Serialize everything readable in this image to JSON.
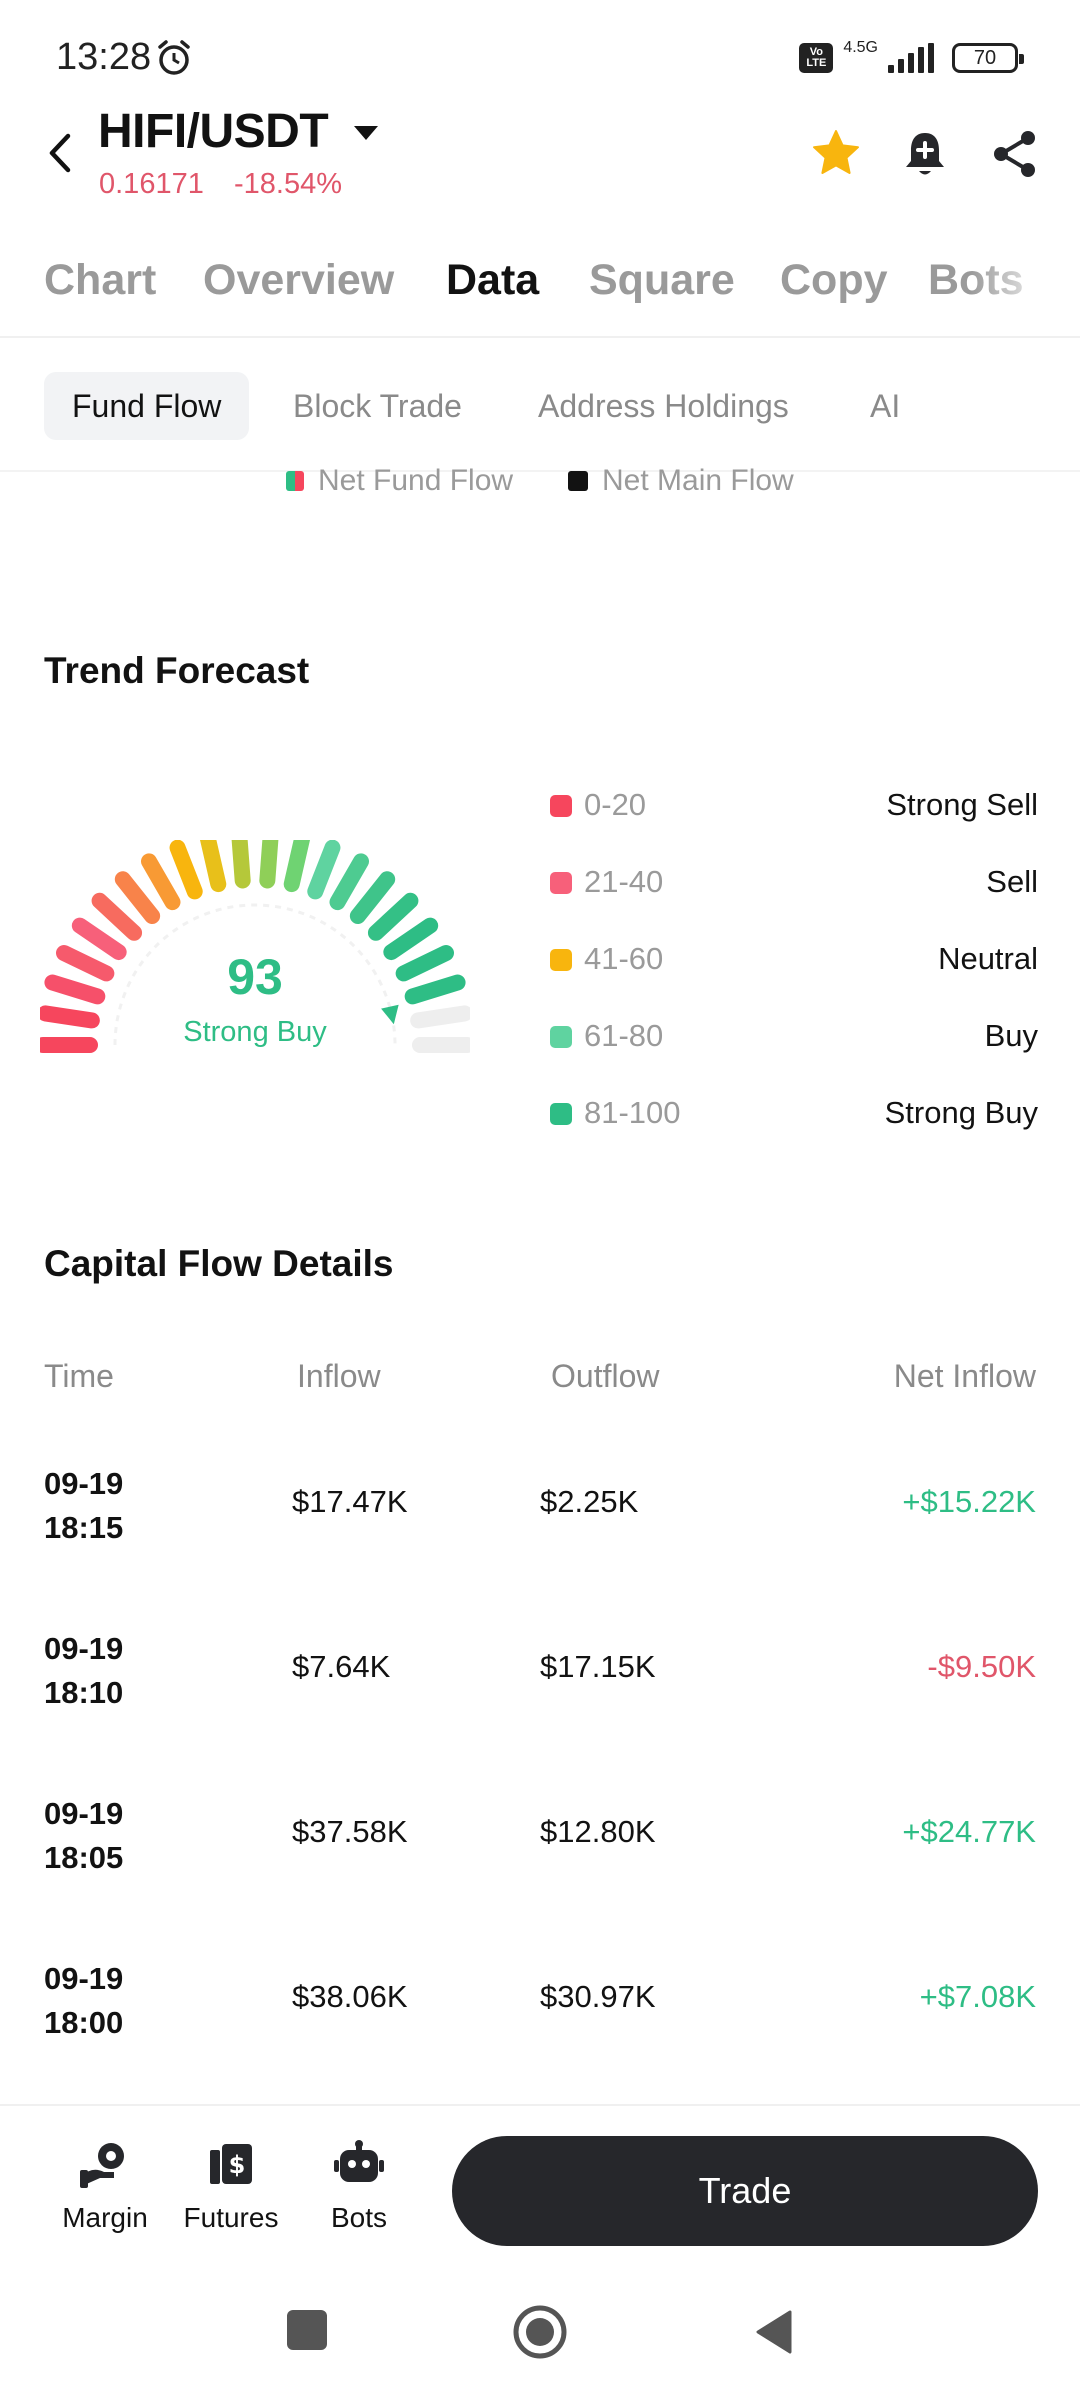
{
  "status_bar": {
    "time": "13:28",
    "volte_top": "Vo",
    "volte_bottom": "LTE",
    "network": "4.5G",
    "battery": "70"
  },
  "header": {
    "pair": "HIFI/USDT",
    "price": "0.16171",
    "change": "-18.54%",
    "colors": {
      "down": "#e0566a",
      "star": "#f8b50e"
    }
  },
  "main_tabs": [
    {
      "label": "Chart"
    },
    {
      "label": "Overview"
    },
    {
      "label": "Data"
    },
    {
      "label": "Square"
    },
    {
      "label": "Copy"
    },
    {
      "label": "Bots"
    }
  ],
  "sub_tabs": [
    {
      "label": "Fund Flow"
    },
    {
      "label": "Block Trade"
    },
    {
      "label": "Address Holdings"
    },
    {
      "label": "AI"
    }
  ],
  "flow_legend": {
    "net_fund_flow": "Net Fund Flow",
    "net_main_flow": "Net Main Flow"
  },
  "trend": {
    "title": "Trend Forecast",
    "score": "93",
    "score_value": 93,
    "score_label": "Strong Buy",
    "legend": [
      {
        "range": "0-20",
        "label": "Strong Sell",
        "color": "#f6465d"
      },
      {
        "range": "21-40",
        "label": "Sell",
        "color": "#f7607a"
      },
      {
        "range": "41-60",
        "label": "Neutral",
        "color": "#f8b50e"
      },
      {
        "range": "61-80",
        "label": "Buy",
        "color": "#5fd3a0"
      },
      {
        "range": "81-100",
        "label": "Strong Buy",
        "color": "#2ebd85"
      }
    ]
  },
  "capital_flow": {
    "title": "Capital Flow Details",
    "headers": {
      "time": "Time",
      "inflow": "Inflow",
      "outflow": "Outflow",
      "net": "Net Inflow"
    },
    "rows": [
      {
        "date": "09-19",
        "time": "18:15",
        "inflow": "$17.47K",
        "outflow": "$2.25K",
        "net": "+$15.22K"
      },
      {
        "date": "09-19",
        "time": "18:10",
        "inflow": "$7.64K",
        "outflow": "$17.15K",
        "net": "-$9.50K"
      },
      {
        "date": "09-19",
        "time": "18:05",
        "inflow": "$37.58K",
        "outflow": "$12.80K",
        "net": "+$24.77K"
      },
      {
        "date": "09-19",
        "time": "18:00",
        "inflow": "$38.06K",
        "outflow": "$30.97K",
        "net": "+$7.08K"
      }
    ]
  },
  "bottom_bar": {
    "margin": "Margin",
    "futures": "Futures",
    "bots": "Bots",
    "trade": "Trade"
  },
  "icons": {
    "back": "chevron-left-icon",
    "star": "star-icon",
    "alert": "bell-plus-icon",
    "share": "share-icon",
    "margin": "margin-icon",
    "futures": "futures-icon",
    "bots": "robot-icon"
  }
}
